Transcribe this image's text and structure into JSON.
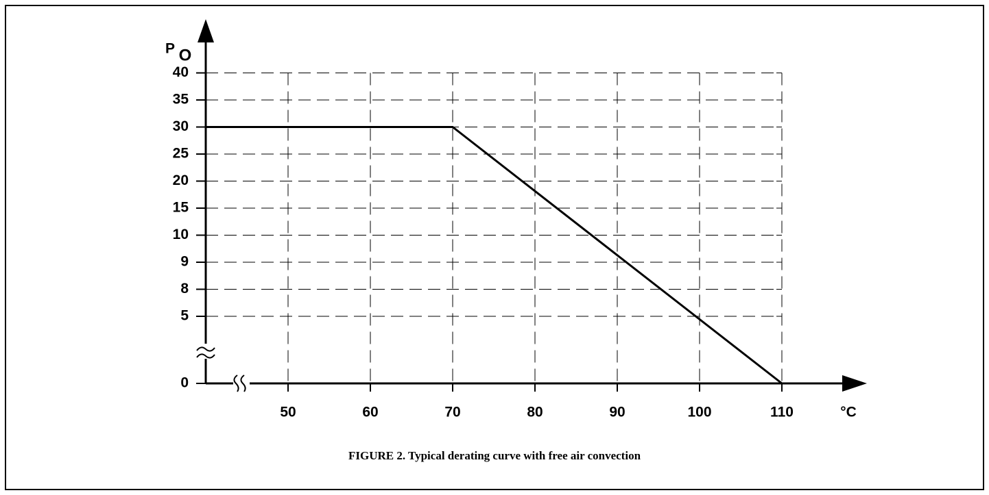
{
  "chart_data": {
    "type": "line",
    "caption": "FIGURE 2. Typical derating curve with free air convection",
    "y_label": "P",
    "y_label_sub": "O",
    "x_label": "°C",
    "x": [
      40,
      70,
      110
    ],
    "values": [
      30,
      30,
      0
    ],
    "color": "#000000",
    "xlim": [
      40,
      120
    ],
    "xticks": [
      50,
      60,
      70,
      80,
      90,
      100,
      110
    ],
    "ylim": [
      0,
      40
    ],
    "yticks": [
      0,
      5,
      8,
      9,
      10,
      15,
      20,
      25,
      30,
      35,
      40
    ],
    "grid": true
  }
}
